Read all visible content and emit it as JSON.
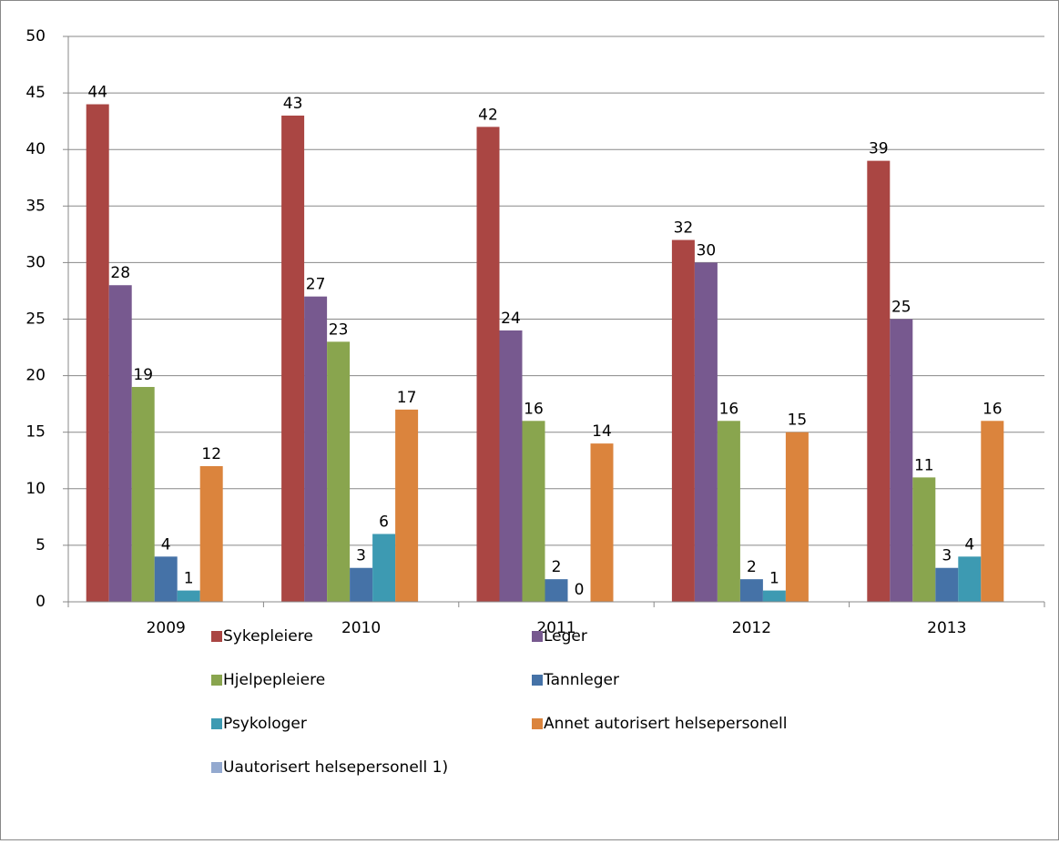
{
  "chart_data": {
    "type": "bar",
    "categories": [
      "2009",
      "2010",
      "2011",
      "2012",
      "2013"
    ],
    "series": [
      {
        "name": "Sykepleiere",
        "color": "#aa4643",
        "values": [
          44,
          43,
          42,
          32,
          39
        ]
      },
      {
        "name": "Leger",
        "color": "#77598f",
        "values": [
          28,
          27,
          24,
          30,
          25
        ]
      },
      {
        "name": "Hjelpepleiere",
        "color": "#89a54e",
        "values": [
          19,
          23,
          16,
          16,
          11
        ]
      },
      {
        "name": "Tannleger",
        "color": "#4572a7",
        "values": [
          4,
          3,
          2,
          2,
          3
        ]
      },
      {
        "name": "Psykologer",
        "color": "#3d9ab2",
        "values": [
          1,
          6,
          0,
          1,
          4
        ]
      },
      {
        "name": "Annet autorisert helsepersonell",
        "color": "#db843d",
        "values": [
          12,
          17,
          14,
          15,
          16
        ]
      },
      {
        "name": "Uautorisert helsepersonell 1)",
        "color": "#93a9cf",
        "values": [
          null,
          null,
          null,
          null,
          null
        ]
      }
    ],
    "ylim": [
      0,
      50
    ],
    "yticks": [
      0,
      5,
      10,
      15,
      20,
      25,
      30,
      35,
      40,
      45,
      50
    ],
    "grid": true,
    "legend": "bottom"
  }
}
